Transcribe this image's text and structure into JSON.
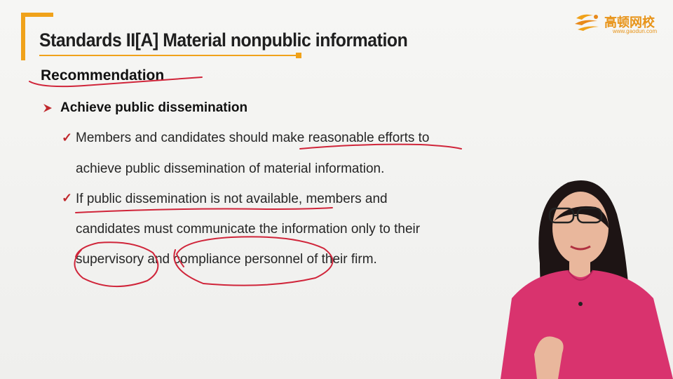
{
  "slide": {
    "title": "Standards II[A] Material nonpublic information",
    "section_heading": "Recommendation",
    "bullet": "Achieve public dissemination",
    "check_items": [
      {
        "lines": [
          "Members and candidates should make reasonable efforts to",
          "achieve public dissemination of material information."
        ]
      },
      {
        "lines": [
          "If public dissemination is not available, members and",
          "candidates must communicate the information only to their",
          "supervisory and compliance personnel of their firm."
        ]
      }
    ]
  },
  "logo": {
    "name_cn": "高顿网校",
    "url": "www.gaodun.com"
  },
  "colors": {
    "accent_orange": "#f0a21a",
    "title_blue": "#1f3a6b",
    "check_red": "#c0282d",
    "ink_red": "#d0253a",
    "presenter_shirt": "#d9336e"
  },
  "icons": {
    "bullet": "arrow-bullet-icon",
    "check": "check-icon",
    "logo": "gaodun-logo-icon"
  }
}
